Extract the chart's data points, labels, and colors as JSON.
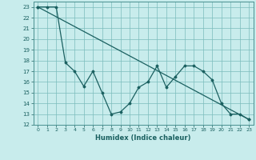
{
  "xlabel": "Humidex (Indice chaleur)",
  "ylabel": "",
  "background_color": "#c8ecec",
  "grid_color": "#7bbcbc",
  "line_color": "#1a6060",
  "spine_color": "#4a9090",
  "xlim": [
    -0.5,
    23.5
  ],
  "ylim": [
    12,
    23.5
  ],
  "yticks": [
    12,
    13,
    14,
    15,
    16,
    17,
    18,
    19,
    20,
    21,
    22,
    23
  ],
  "xticks": [
    0,
    1,
    2,
    3,
    4,
    5,
    6,
    7,
    8,
    9,
    10,
    11,
    12,
    13,
    14,
    15,
    16,
    17,
    18,
    19,
    20,
    21,
    22,
    23
  ],
  "line1_x": [
    0,
    23
  ],
  "line1_y": [
    23,
    12.5
  ],
  "line2_x": [
    0,
    1,
    2,
    3,
    4,
    5,
    6,
    7,
    8,
    9,
    10,
    11,
    12,
    13,
    14,
    15,
    16,
    17,
    18,
    19,
    20,
    21,
    22,
    23
  ],
  "line2_y": [
    23,
    23,
    23,
    17.8,
    17.0,
    15.6,
    17.0,
    15.0,
    13.0,
    13.2,
    14.0,
    15.5,
    16.0,
    17.5,
    15.5,
    16.5,
    17.5,
    17.5,
    17.0,
    16.2,
    14.0,
    13.0,
    13.0,
    12.5
  ]
}
